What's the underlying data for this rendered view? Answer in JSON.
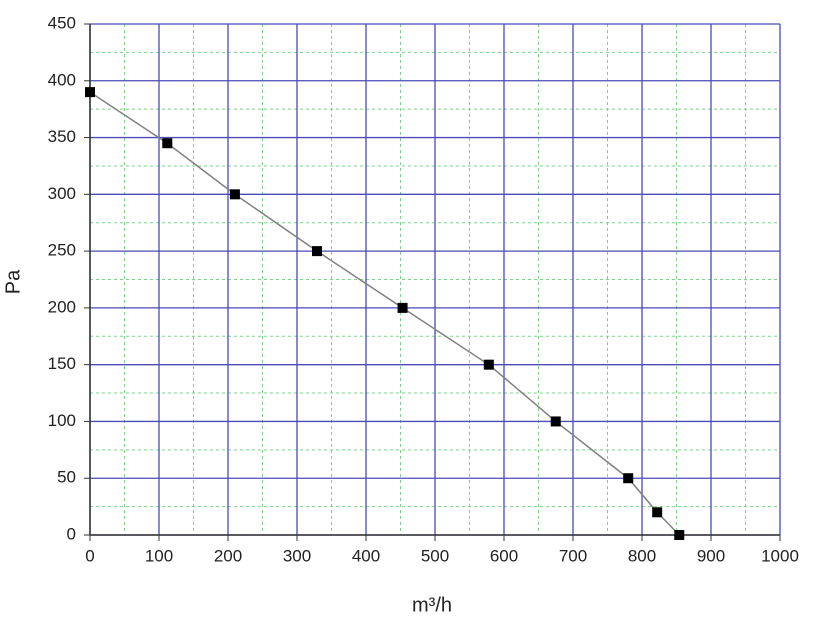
{
  "chart_data": {
    "type": "line",
    "x_label": "m³/h",
    "y_label": "Pa",
    "series": [
      {
        "color": "#808080",
        "marker_color": "#000000",
        "x": [
          0,
          112,
          210,
          329,
          453,
          578,
          675,
          780,
          822,
          854
        ],
        "values": [
          390,
          345,
          300,
          250,
          200,
          150,
          100,
          50,
          20,
          0
        ]
      }
    ],
    "xlim": [
      0,
      1000
    ],
    "ylim": [
      0,
      450
    ],
    "xticks": [
      0,
      100,
      200,
      300,
      400,
      500,
      600,
      700,
      800,
      900,
      1000
    ],
    "yticks": [
      0,
      50,
      100,
      150,
      200,
      250,
      300,
      350,
      400,
      450
    ],
    "minor_xticks": [
      50,
      150,
      250,
      350,
      450,
      550,
      650,
      750,
      850,
      950
    ],
    "minor_yticks": [
      25,
      75,
      125,
      175,
      225,
      275,
      325,
      375,
      425
    ],
    "grid": true,
    "grid_color": "#4a4ab8",
    "minor_grid_color": "#7fd08a"
  }
}
